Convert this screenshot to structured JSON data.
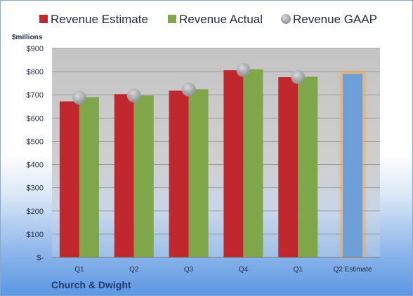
{
  "chart_data": {
    "type": "bar",
    "categories": [
      "Q1",
      "Q2",
      "Q3",
      "Q4",
      "Q1",
      "Q2 Estimate"
    ],
    "series": [
      {
        "name": "Revenue Estimate",
        "color": "#c0282d",
        "values": [
          672,
          703,
          718,
          806,
          776,
          null
        ]
      },
      {
        "name": "Revenue Actual",
        "color": "#7fa74a",
        "values": [
          690,
          697,
          724,
          810,
          778,
          null
        ]
      },
      {
        "name": "Revenue GAAP",
        "color": "#a9adb3",
        "values": [
          688,
          697,
          723,
          807,
          776,
          null
        ]
      }
    ],
    "estimate_bar": {
      "category": "Q2 Estimate",
      "value": 790,
      "color": "#6f9fd8",
      "highlight": "#f5a43f"
    },
    "ylabel": "$millions",
    "ylim": [
      0,
      900
    ],
    "yticks": [
      0,
      100,
      200,
      300,
      400,
      500,
      600,
      700,
      800,
      900
    ],
    "ytick_labels": [
      "$-",
      "$100",
      "$200",
      "$300",
      "$400",
      "$500",
      "$600",
      "$700",
      "$800",
      "$900"
    ],
    "grid": true,
    "legend_position": "top"
  },
  "company": "Church & Dwight"
}
